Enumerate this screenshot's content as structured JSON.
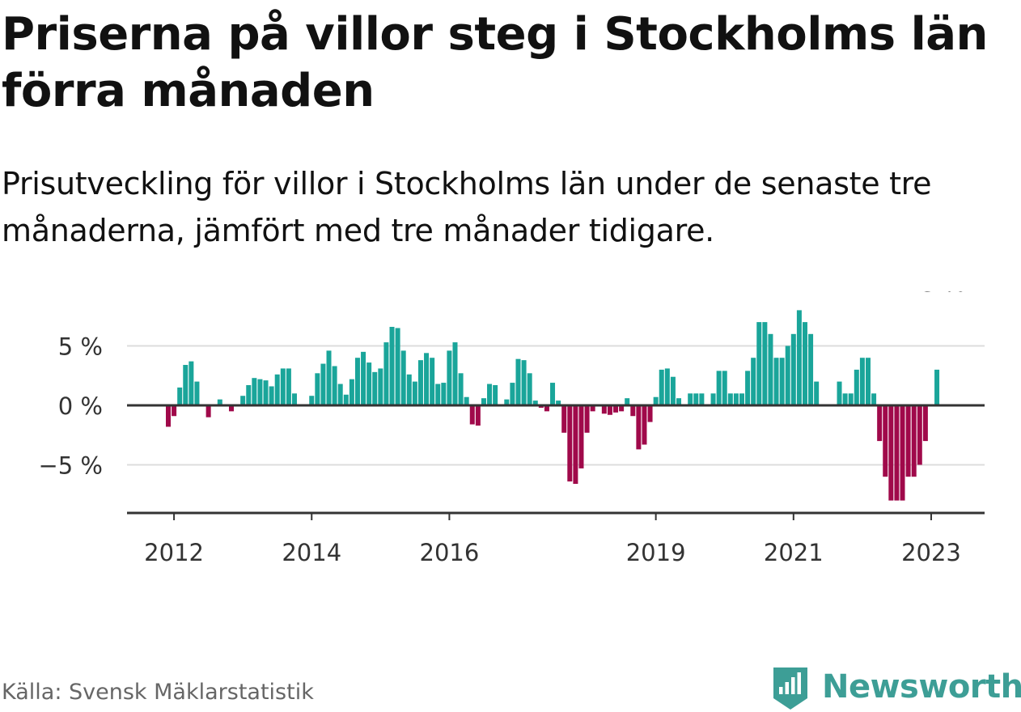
{
  "title": "Priserna på villor steg i Stockholms län förra månaden",
  "subtitle": "Prisutveckling för villor i Stockholms län under de senaste tre månaderna, jämfört med tre månader tidigare.",
  "source": "Källa: Svensk Mäklarstatistik",
  "brand": {
    "name": "Newsworthy",
    "icon": "newsworthy-logo-icon"
  },
  "colors": {
    "positive": "#1aa59a",
    "negative": "#a0094a",
    "axis": "#333333",
    "grid": "#dddddd",
    "text": "#333333"
  },
  "chart_data": {
    "type": "bar",
    "title": "Priserna på villor steg i Stockholms län förra månaden",
    "ylabel": "",
    "xlabel": "",
    "start": "2011-12",
    "y_ticks": [
      5,
      0,
      -5
    ],
    "y_tick_labels": [
      "5 %",
      "0 %",
      "−5 %"
    ],
    "ylim": [
      -9,
      8
    ],
    "x_ticks": [
      {
        "label": "2012",
        "index": 1
      },
      {
        "label": "2014",
        "index": 25
      },
      {
        "label": "2016",
        "index": 49
      },
      {
        "label": "2019",
        "index": 85
      },
      {
        "label": "2021",
        "index": 109
      },
      {
        "label": "2023",
        "index": 133
      }
    ],
    "annotation": {
      "text": "3 %",
      "index": 135
    },
    "values": [
      -1.8,
      -0.9,
      1.5,
      3.4,
      3.7,
      2.0,
      null,
      -1.0,
      null,
      0.5,
      null,
      -0.5,
      null,
      0.8,
      1.7,
      2.3,
      2.2,
      2.1,
      1.6,
      2.6,
      3.1,
      3.1,
      1.0,
      null,
      null,
      0.8,
      2.7,
      3.5,
      4.6,
      3.3,
      1.8,
      0.9,
      2.2,
      4.0,
      4.5,
      3.6,
      2.8,
      3.1,
      5.3,
      6.6,
      6.5,
      4.6,
      2.6,
      2.0,
      3.8,
      4.4,
      4.0,
      1.8,
      1.9,
      4.6,
      5.3,
      2.7,
      0.7,
      -1.6,
      -1.7,
      0.6,
      1.8,
      1.7,
      null,
      0.5,
      1.9,
      3.9,
      3.8,
      2.7,
      0.4,
      -0.2,
      -0.5,
      1.9,
      0.4,
      -2.3,
      -6.4,
      -6.6,
      -5.3,
      -2.3,
      -0.5,
      null,
      -0.7,
      -0.8,
      -0.6,
      -0.5,
      0.6,
      -0.9,
      -3.7,
      -3.3,
      -1.4,
      0.7,
      3.0,
      3.1,
      2.4,
      0.6,
      null,
      1.0,
      1.0,
      1.0,
      null,
      1.0,
      2.9,
      2.9,
      1.0,
      1.0,
      1.0,
      2.9,
      4.0,
      7.0,
      7.0,
      6.0,
      4.0,
      4.0,
      5.0,
      6.0,
      8.0,
      7.0,
      6.0,
      2.0,
      null,
      null,
      null,
      2.0,
      1.0,
      1.0,
      3.0,
      4.0,
      4.0,
      1.0,
      -3.0,
      -6.0,
      -8.0,
      -8.0,
      -8.0,
      -6.0,
      -6.0,
      -5.0,
      -3.0,
      null,
      3.0
    ]
  }
}
